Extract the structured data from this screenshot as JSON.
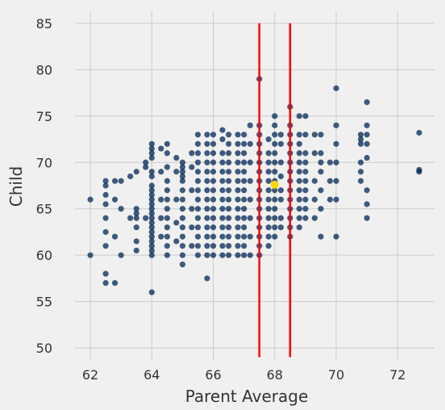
{
  "chart_data": {
    "type": "scatter",
    "xlabel": "Parent Average",
    "ylabel": "Child",
    "xlim": [
      61.5,
      73.2
    ],
    "ylim": [
      48.7,
      86.3
    ],
    "xticks": [
      62,
      64,
      66,
      68,
      70,
      72
    ],
    "yticks": [
      50,
      55,
      60,
      65,
      70,
      75,
      80,
      85
    ],
    "grid": true,
    "point_color": "#012855",
    "highlight_color": "#FFD700",
    "line_color": "#FF0000",
    "vertical_lines": [
      67.5,
      68.5
    ],
    "highlight_point": {
      "x": 68.0,
      "y": 67.6
    },
    "points": [
      [
        62.0,
        66.0
      ],
      [
        62.0,
        60.0
      ],
      [
        62.5,
        68.0
      ],
      [
        62.5,
        67.5
      ],
      [
        62.5,
        66.5
      ],
      [
        62.5,
        65.5
      ],
      [
        62.5,
        64.0
      ],
      [
        62.5,
        62.5
      ],
      [
        62.5,
        61.0
      ],
      [
        62.5,
        58.0
      ],
      [
        62.5,
        57.0
      ],
      [
        62.8,
        68.0
      ],
      [
        62.8,
        66.0
      ],
      [
        62.8,
        62.0
      ],
      [
        62.8,
        57.0
      ],
      [
        63.0,
        68.0
      ],
      [
        63.0,
        65.0
      ],
      [
        63.0,
        60.0
      ],
      [
        63.3,
        68.5
      ],
      [
        63.3,
        64.0
      ],
      [
        63.5,
        69.0
      ],
      [
        63.5,
        65.0
      ],
      [
        63.5,
        64.5
      ],
      [
        63.5,
        64.0
      ],
      [
        63.5,
        63.0
      ],
      [
        63.5,
        61.5
      ],
      [
        63.5,
        60.5
      ],
      [
        63.8,
        70.0
      ],
      [
        63.8,
        69.5
      ],
      [
        63.8,
        64.0
      ],
      [
        64.0,
        72.0
      ],
      [
        64.0,
        71.5
      ],
      [
        64.0,
        71.0
      ],
      [
        64.0,
        70.5
      ],
      [
        64.0,
        69.0
      ],
      [
        64.0,
        68.5
      ],
      [
        64.0,
        67.5
      ],
      [
        64.0,
        67.0
      ],
      [
        64.0,
        66.5
      ],
      [
        64.0,
        66.0
      ],
      [
        64.0,
        65.5
      ],
      [
        64.0,
        65.0
      ],
      [
        64.0,
        64.5
      ],
      [
        64.0,
        64.0
      ],
      [
        64.0,
        63.5
      ],
      [
        64.0,
        63.0
      ],
      [
        64.0,
        62.5
      ],
      [
        64.0,
        62.0
      ],
      [
        64.0,
        61.5
      ],
      [
        64.0,
        61.0
      ],
      [
        64.0,
        60.5
      ],
      [
        64.0,
        60.0
      ],
      [
        64.0,
        56.0
      ],
      [
        64.3,
        71.5
      ],
      [
        64.3,
        69.0
      ],
      [
        64.3,
        66.0
      ],
      [
        64.3,
        64.0
      ],
      [
        64.3,
        62.0
      ],
      [
        64.5,
        72.0
      ],
      [
        64.5,
        71.0
      ],
      [
        64.5,
        69.5
      ],
      [
        64.5,
        68.0
      ],
      [
        64.5,
        67.0
      ],
      [
        64.5,
        66.0
      ],
      [
        64.5,
        65.0
      ],
      [
        64.5,
        64.0
      ],
      [
        64.5,
        63.0
      ],
      [
        64.5,
        62.0
      ],
      [
        64.5,
        61.0
      ],
      [
        64.5,
        60.0
      ],
      [
        64.8,
        70.5
      ],
      [
        64.8,
        69.0
      ],
      [
        64.8,
        66.0
      ],
      [
        64.8,
        63.5
      ],
      [
        64.8,
        61.5
      ],
      [
        65.0,
        70.0
      ],
      [
        65.0,
        69.5
      ],
      [
        65.0,
        69.0
      ],
      [
        65.0,
        68.5
      ],
      [
        65.0,
        68.0
      ],
      [
        65.0,
        67.0
      ],
      [
        65.0,
        66.0
      ],
      [
        65.0,
        65.0
      ],
      [
        65.0,
        64.0
      ],
      [
        65.0,
        63.0
      ],
      [
        65.0,
        62.0
      ],
      [
        65.0,
        61.0
      ],
      [
        65.0,
        60.0
      ],
      [
        65.0,
        59.0
      ],
      [
        65.3,
        71.0
      ],
      [
        65.3,
        69.5
      ],
      [
        65.3,
        67.0
      ],
      [
        65.3,
        65.0
      ],
      [
        65.3,
        63.0
      ],
      [
        65.3,
        61.0
      ],
      [
        65.5,
        73.0
      ],
      [
        65.5,
        72.0
      ],
      [
        65.5,
        71.0
      ],
      [
        65.5,
        70.0
      ],
      [
        65.5,
        69.0
      ],
      [
        65.5,
        68.0
      ],
      [
        65.5,
        67.0
      ],
      [
        65.5,
        66.0
      ],
      [
        65.5,
        65.0
      ],
      [
        65.5,
        64.0
      ],
      [
        65.5,
        63.0
      ],
      [
        65.5,
        62.0
      ],
      [
        65.5,
        61.0
      ],
      [
        65.5,
        60.0
      ],
      [
        65.8,
        73.0
      ],
      [
        65.8,
        72.0
      ],
      [
        65.8,
        71.0
      ],
      [
        65.8,
        70.0
      ],
      [
        65.8,
        69.0
      ],
      [
        65.8,
        68.0
      ],
      [
        65.8,
        67.0
      ],
      [
        65.8,
        66.0
      ],
      [
        65.8,
        65.0
      ],
      [
        65.8,
        64.0
      ],
      [
        65.8,
        63.0
      ],
      [
        65.8,
        62.0
      ],
      [
        65.8,
        61.0
      ],
      [
        65.8,
        60.0
      ],
      [
        65.8,
        57.5
      ],
      [
        66.0,
        73.0
      ],
      [
        66.0,
        72.0
      ],
      [
        66.0,
        71.0
      ],
      [
        66.0,
        70.0
      ],
      [
        66.0,
        69.0
      ],
      [
        66.0,
        68.0
      ],
      [
        66.0,
        67.0
      ],
      [
        66.0,
        66.0
      ],
      [
        66.0,
        65.0
      ],
      [
        66.0,
        64.0
      ],
      [
        66.0,
        63.0
      ],
      [
        66.0,
        62.0
      ],
      [
        66.0,
        61.0
      ],
      [
        66.0,
        60.0
      ],
      [
        66.3,
        73.5
      ],
      [
        66.3,
        72.5
      ],
      [
        66.3,
        71.0
      ],
      [
        66.3,
        70.0
      ],
      [
        66.3,
        69.0
      ],
      [
        66.3,
        68.0
      ],
      [
        66.3,
        67.0
      ],
      [
        66.3,
        66.0
      ],
      [
        66.3,
        65.0
      ],
      [
        66.3,
        64.0
      ],
      [
        66.3,
        63.0
      ],
      [
        66.3,
        62.0
      ],
      [
        66.3,
        61.0
      ],
      [
        66.3,
        60.0
      ],
      [
        66.5,
        73.0
      ],
      [
        66.5,
        72.0
      ],
      [
        66.5,
        71.0
      ],
      [
        66.5,
        70.0
      ],
      [
        66.5,
        69.0
      ],
      [
        66.5,
        68.0
      ],
      [
        66.5,
        67.0
      ],
      [
        66.5,
        66.0
      ],
      [
        66.5,
        65.0
      ],
      [
        66.5,
        64.0
      ],
      [
        66.5,
        63.0
      ],
      [
        66.5,
        62.0
      ],
      [
        66.5,
        61.0
      ],
      [
        66.5,
        60.0
      ],
      [
        66.8,
        73.0
      ],
      [
        66.8,
        72.0
      ],
      [
        66.8,
        71.0
      ],
      [
        66.8,
        70.0
      ],
      [
        66.8,
        69.0
      ],
      [
        66.8,
        68.0
      ],
      [
        66.8,
        67.0
      ],
      [
        66.8,
        66.0
      ],
      [
        66.8,
        65.0
      ],
      [
        66.8,
        64.0
      ],
      [
        66.8,
        63.0
      ],
      [
        66.8,
        62.0
      ],
      [
        66.8,
        61.0
      ],
      [
        66.8,
        60.0
      ],
      [
        67.0,
        73.0
      ],
      [
        67.0,
        72.0
      ],
      [
        67.0,
        71.0
      ],
      [
        67.0,
        70.0
      ],
      [
        67.0,
        69.0
      ],
      [
        67.0,
        68.0
      ],
      [
        67.0,
        67.0
      ],
      [
        67.0,
        66.0
      ],
      [
        67.0,
        65.0
      ],
      [
        67.0,
        64.0
      ],
      [
        67.0,
        63.0
      ],
      [
        67.0,
        62.0
      ],
      [
        67.0,
        61.0
      ],
      [
        67.0,
        60.0
      ],
      [
        67.2,
        74.0
      ],
      [
        67.2,
        72.0
      ],
      [
        67.2,
        70.0
      ],
      [
        67.2,
        68.0
      ],
      [
        67.2,
        66.0
      ],
      [
        67.2,
        64.0
      ],
      [
        67.2,
        62.0
      ],
      [
        67.2,
        60.0
      ],
      [
        67.5,
        79.0
      ],
      [
        67.5,
        74.0
      ],
      [
        67.5,
        73.0
      ],
      [
        67.5,
        72.0
      ],
      [
        67.5,
        71.0
      ],
      [
        67.5,
        70.0
      ],
      [
        67.5,
        69.0
      ],
      [
        67.5,
        68.0
      ],
      [
        67.5,
        67.0
      ],
      [
        67.5,
        66.0
      ],
      [
        67.5,
        65.0
      ],
      [
        67.5,
        64.0
      ],
      [
        67.5,
        63.0
      ],
      [
        67.5,
        62.0
      ],
      [
        67.5,
        61.0
      ],
      [
        67.5,
        60.0
      ],
      [
        67.8,
        72.5
      ],
      [
        67.8,
        71.0
      ],
      [
        67.8,
        70.0
      ],
      [
        67.8,
        69.0
      ],
      [
        67.8,
        68.0
      ],
      [
        67.8,
        67.0
      ],
      [
        67.8,
        66.0
      ],
      [
        67.8,
        65.0
      ],
      [
        67.8,
        64.0
      ],
      [
        67.8,
        63.0
      ],
      [
        67.8,
        62.0
      ],
      [
        67.8,
        61.0
      ],
      [
        68.0,
        75.0
      ],
      [
        68.0,
        74.0
      ],
      [
        68.0,
        73.0
      ],
      [
        68.0,
        72.0
      ],
      [
        68.0,
        71.0
      ],
      [
        68.0,
        70.0
      ],
      [
        68.0,
        69.0
      ],
      [
        68.0,
        68.0
      ],
      [
        68.0,
        67.0
      ],
      [
        68.0,
        66.0
      ],
      [
        68.0,
        65.0
      ],
      [
        68.0,
        64.0
      ],
      [
        68.0,
        63.0
      ],
      [
        68.0,
        62.0
      ],
      [
        68.2,
        73.0
      ],
      [
        68.2,
        72.0
      ],
      [
        68.2,
        70.0
      ],
      [
        68.2,
        68.5
      ],
      [
        68.2,
        67.0
      ],
      [
        68.2,
        66.0
      ],
      [
        68.2,
        64.0
      ],
      [
        68.2,
        63.0
      ],
      [
        68.5,
        76.0
      ],
      [
        68.5,
        74.0
      ],
      [
        68.5,
        73.0
      ],
      [
        68.5,
        72.0
      ],
      [
        68.5,
        71.0
      ],
      [
        68.5,
        70.0
      ],
      [
        68.5,
        69.0
      ],
      [
        68.5,
        68.0
      ],
      [
        68.5,
        67.0
      ],
      [
        68.5,
        66.0
      ],
      [
        68.5,
        65.0
      ],
      [
        68.5,
        64.0
      ],
      [
        68.5,
        63.0
      ],
      [
        68.5,
        62.0
      ],
      [
        68.8,
        75.0
      ],
      [
        68.8,
        73.0
      ],
      [
        68.8,
        72.0
      ],
      [
        68.8,
        71.0
      ],
      [
        68.8,
        70.0
      ],
      [
        68.8,
        69.0
      ],
      [
        68.8,
        68.0
      ],
      [
        68.8,
        67.0
      ],
      [
        68.8,
        66.0
      ],
      [
        68.8,
        65.0
      ],
      [
        68.8,
        64.0
      ],
      [
        68.8,
        63.0
      ],
      [
        69.0,
        75.0
      ],
      [
        69.0,
        73.0
      ],
      [
        69.0,
        71.0
      ],
      [
        69.0,
        70.0
      ],
      [
        69.0,
        69.0
      ],
      [
        69.0,
        68.0
      ],
      [
        69.0,
        67.0
      ],
      [
        69.0,
        66.0
      ],
      [
        69.0,
        65.0
      ],
      [
        69.0,
        64.0
      ],
      [
        69.3,
        73.0
      ],
      [
        69.3,
        71.0
      ],
      [
        69.3,
        68.0
      ],
      [
        69.3,
        66.0
      ],
      [
        69.3,
        64.0
      ],
      [
        69.5,
        73.0
      ],
      [
        69.5,
        71.0
      ],
      [
        69.5,
        70.0
      ],
      [
        69.5,
        69.0
      ],
      [
        69.5,
        67.0
      ],
      [
        69.5,
        65.0
      ],
      [
        69.5,
        62.0
      ],
      [
        69.8,
        70.0
      ],
      [
        69.8,
        68.0
      ],
      [
        69.8,
        66.0
      ],
      [
        70.0,
        78.0
      ],
      [
        70.0,
        74.0
      ],
      [
        70.0,
        72.0
      ],
      [
        70.0,
        70.0
      ],
      [
        70.0,
        68.0
      ],
      [
        70.0,
        66.0
      ],
      [
        70.0,
        62.0
      ],
      [
        70.8,
        73.0
      ],
      [
        70.8,
        72.5
      ],
      [
        70.8,
        72.0
      ],
      [
        70.8,
        70.0
      ],
      [
        70.8,
        69.0
      ],
      [
        70.8,
        68.0
      ],
      [
        71.0,
        76.5
      ],
      [
        71.0,
        74.0
      ],
      [
        71.0,
        73.0
      ],
      [
        71.0,
        72.0
      ],
      [
        71.0,
        70.5
      ],
      [
        71.0,
        67.0
      ],
      [
        71.0,
        65.5
      ],
      [
        71.0,
        64.0
      ],
      [
        72.7,
        73.2
      ],
      [
        72.7,
        69.2
      ],
      [
        72.7,
        69.0
      ]
    ]
  }
}
